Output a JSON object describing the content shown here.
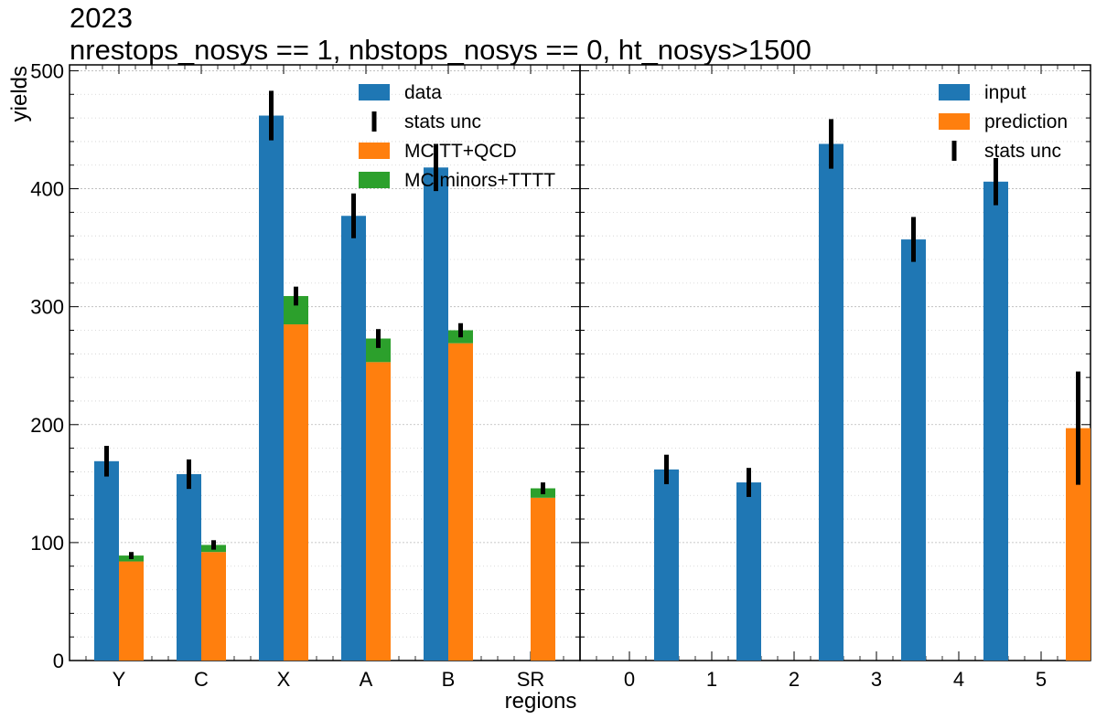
{
  "title_line1": "2023",
  "title_line2": "nrestops_nosys == 1, nbstops_nosys == 0, ht_nosys>1500",
  "ylabel": "yields",
  "xlabel": "regions",
  "colors": {
    "blue": "#1f77b4",
    "orange": "#ff7f0e",
    "green": "#2ca02c",
    "error": "#000000",
    "grid": "#b0b0b0"
  },
  "chart_data": [
    {
      "type": "bar",
      "panel": "left",
      "categories": [
        "Y",
        "C",
        "X",
        "A",
        "B",
        "SR"
      ],
      "ylim": [
        0,
        505
      ],
      "yticks": [
        0,
        100,
        200,
        300,
        400,
        500
      ],
      "grid": true,
      "legend_position": "top-right",
      "legend": [
        "data",
        "stats unc",
        "MC TT+QCD",
        "MC minors+TTTT"
      ],
      "series": [
        {
          "name": "data",
          "values": [
            169,
            158,
            462,
            377,
            418,
            null
          ],
          "errors": [
            13,
            12.5,
            21,
            19,
            20,
            null
          ]
        },
        {
          "name": "MC TT+QCD",
          "values": [
            84,
            92,
            285,
            253,
            269,
            138
          ]
        },
        {
          "name": "MC minors+TTTT",
          "values": [
            5,
            6,
            24,
            20,
            11,
            8
          ]
        }
      ],
      "mc_total_errors": [
        3,
        4,
        8,
        8,
        6,
        5
      ]
    },
    {
      "type": "bar",
      "panel": "right",
      "categories": [
        "0",
        "1",
        "2",
        "3",
        "4",
        "5"
      ],
      "ylim": [
        0,
        505
      ],
      "grid": true,
      "legend_position": "top-right",
      "legend": [
        "input",
        "prediction",
        "stats unc"
      ],
      "series": [
        {
          "name": "input",
          "values": [
            162,
            151,
            438,
            357,
            406,
            null
          ],
          "errors": [
            12.5,
            12.3,
            21,
            19,
            20,
            null
          ]
        },
        {
          "name": "prediction",
          "values": [
            null,
            null,
            null,
            null,
            null,
            197
          ],
          "errors": [
            null,
            null,
            null,
            null,
            null,
            48
          ]
        }
      ]
    }
  ]
}
